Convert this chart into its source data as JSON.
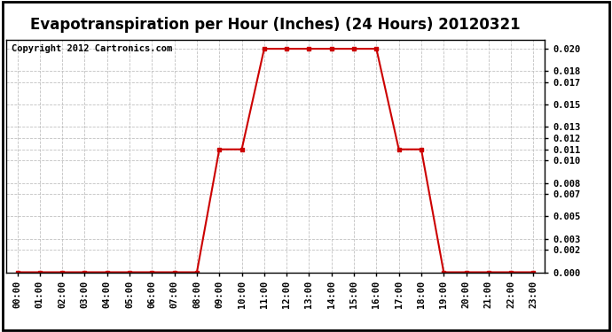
{
  "title": "Evapotranspiration per Hour (Inches) (24 Hours) 20120321",
  "copyright": "Copyright 2012 Cartronics.com",
  "x_labels": [
    "00:00",
    "01:00",
    "02:00",
    "03:00",
    "04:00",
    "05:00",
    "06:00",
    "07:00",
    "08:00",
    "09:00",
    "10:00",
    "11:00",
    "12:00",
    "13:00",
    "14:00",
    "15:00",
    "16:00",
    "17:00",
    "18:00",
    "19:00",
    "20:00",
    "21:00",
    "22:00",
    "23:00"
  ],
  "y_values": [
    0.0,
    0.0,
    0.0,
    0.0,
    0.0,
    0.0,
    0.0,
    0.0,
    0.0,
    0.011,
    0.011,
    0.02,
    0.02,
    0.02,
    0.02,
    0.02,
    0.02,
    0.011,
    0.011,
    0.0,
    0.0,
    0.0,
    0.0,
    0.0
  ],
  "y_ticks": [
    0.0,
    0.002,
    0.003,
    0.005,
    0.007,
    0.008,
    0.01,
    0.011,
    0.012,
    0.013,
    0.015,
    0.017,
    0.018,
    0.02
  ],
  "ylim": [
    0.0,
    0.0208
  ],
  "line_color": "#cc0000",
  "marker": "s",
  "marker_size": 3,
  "bg_color": "#ffffff",
  "plot_bg_color": "#ffffff",
  "grid_color": "#bbbbbb",
  "title_fontsize": 12,
  "copyright_fontsize": 7.5,
  "tick_fontsize": 7.5,
  "line_width": 1.5,
  "outer_border_color": "#000000"
}
